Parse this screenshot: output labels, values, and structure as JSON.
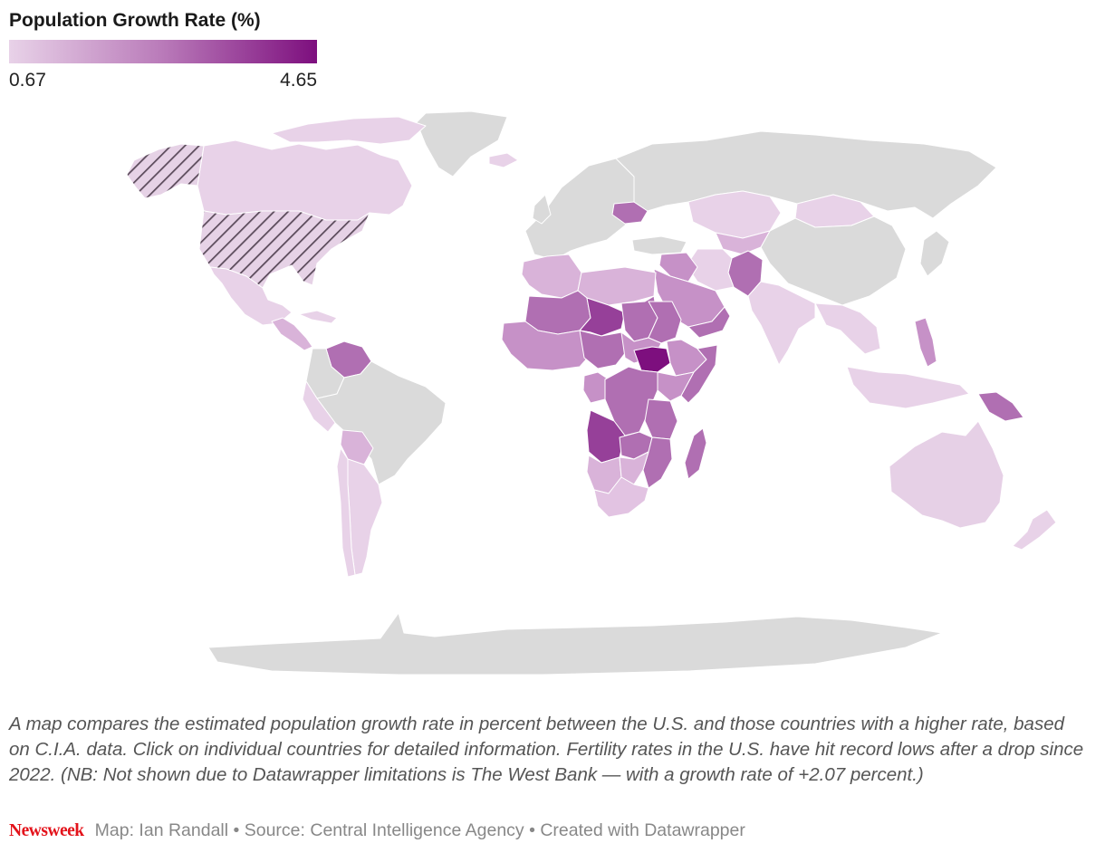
{
  "legend": {
    "title": "Population Growth Rate (%)",
    "min_label": "0.67",
    "max_label": "4.65",
    "color_low": "#e8d2e8",
    "color_high": "#7d0f7e"
  },
  "map": {
    "type": "choropleth",
    "no_data_color": "#dadada",
    "border_color": "#ffffff",
    "highlight": "United States (hatched)",
    "colors": {
      "low": "#e8d2e8",
      "mid_low": "#d9b3d9",
      "mid": "#c691c7",
      "mid_high": "#b06fb2",
      "high": "#964099",
      "max": "#7d0f7e"
    }
  },
  "description": "A map compares the estimated population growth rate in percent between the U.S. and those countries with a higher rate, based on C.I.A. data. Click on individual countries for detailed information. Fertility rates in the U.S. have hit record lows after a drop since 2022. (NB: Not shown due to Datawrapper limitations is The West Bank — with a growth rate of +2.07 percent.)",
  "footer": {
    "brand": "Newsweek",
    "credits": "Map: Ian Randall • Source: Central Intelligence Agency • Created with Datawrapper"
  }
}
